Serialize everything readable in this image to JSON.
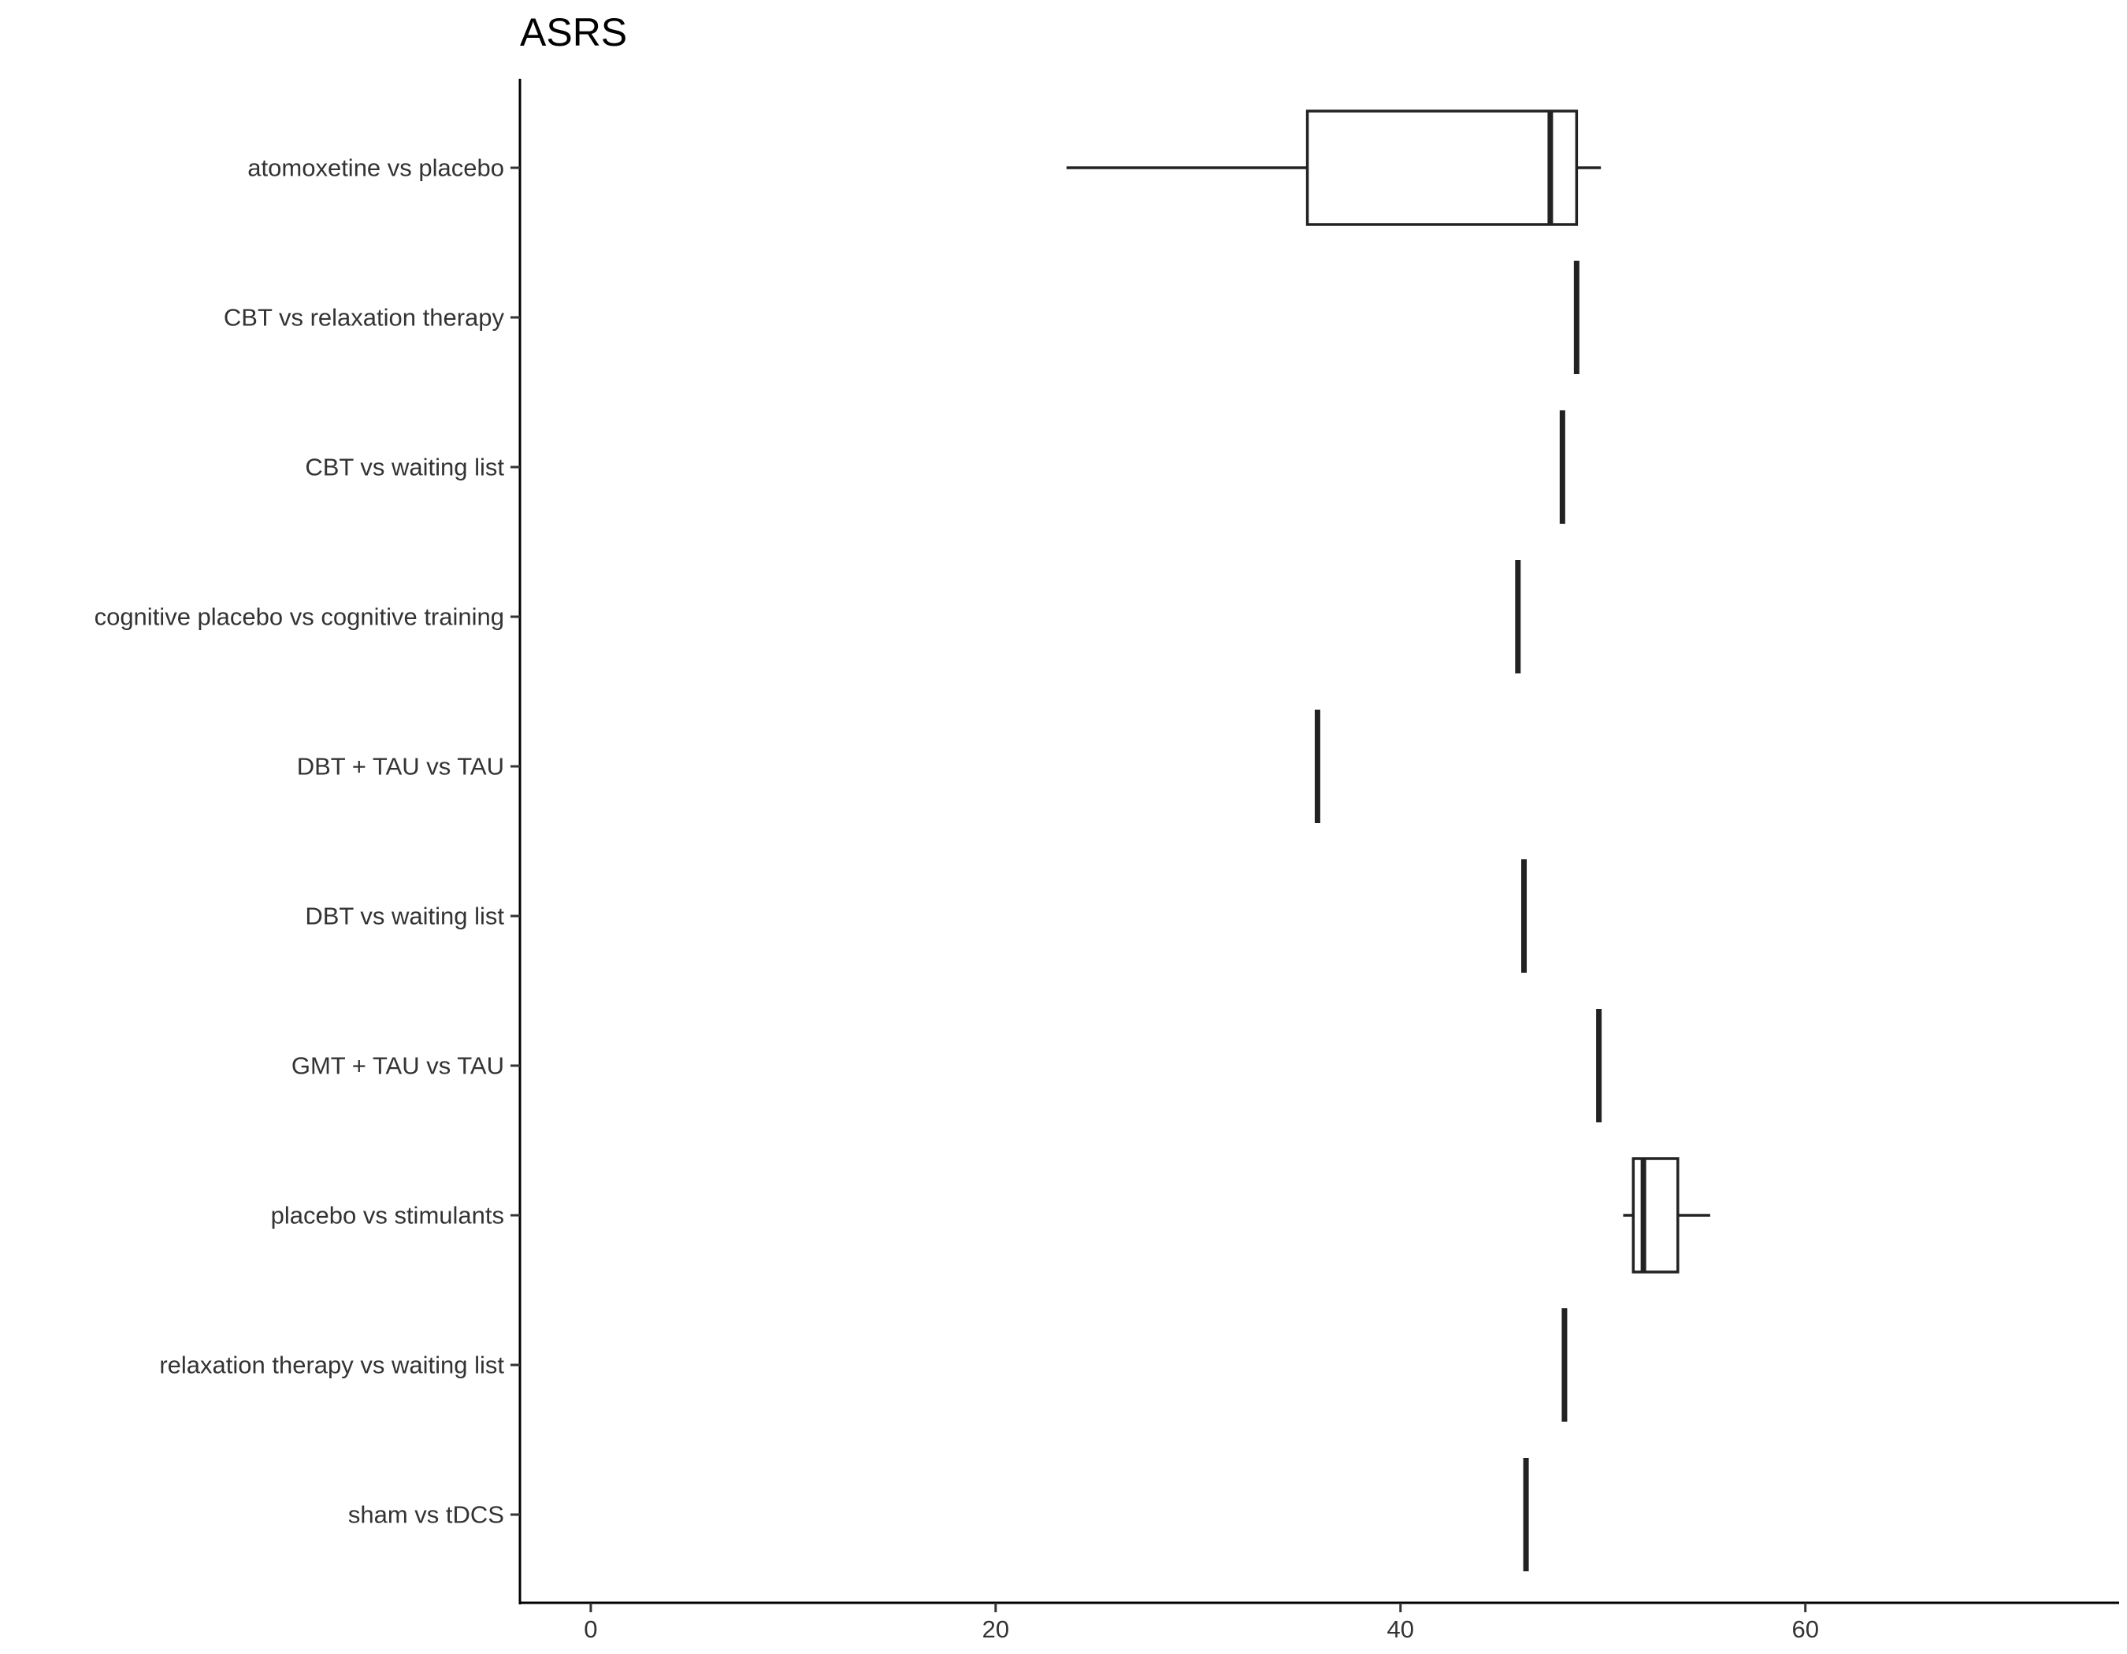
{
  "chart_data": {
    "type": "boxplot",
    "orientation": "horizontal",
    "title": "ASRS",
    "xlabel": "",
    "ylabel": "",
    "xlim": [
      -3.5,
      75.5
    ],
    "xticks": [
      0,
      20,
      40,
      60
    ],
    "grid": false,
    "legend": "none",
    "categories": [
      "atomoxetine vs placebo",
      "CBT vs relaxation therapy",
      "CBT vs waiting list",
      "cognitive placebo vs cognitive training",
      "DBT + TAU vs TAU",
      "DBT vs waiting list",
      "GMT + TAU vs TAU",
      "placebo vs stimulants",
      "relaxation therapy vs waiting list",
      "sham vs tDCS"
    ],
    "boxes": [
      {
        "min": 23.5,
        "q1": 35.4,
        "median": 47.4,
        "q3": 48.7,
        "max": 49.9
      },
      {
        "min": 48.7,
        "q1": 48.7,
        "median": 48.7,
        "q3": 48.7,
        "max": 48.7
      },
      {
        "min": 48.0,
        "q1": 48.0,
        "median": 48.0,
        "q3": 48.0,
        "max": 48.0
      },
      {
        "min": 45.8,
        "q1": 45.8,
        "median": 45.8,
        "q3": 45.8,
        "max": 45.8
      },
      {
        "min": 35.9,
        "q1": 35.9,
        "median": 35.9,
        "q3": 35.9,
        "max": 35.9
      },
      {
        "min": 46.1,
        "q1": 46.1,
        "median": 46.1,
        "q3": 46.1,
        "max": 46.1
      },
      {
        "min": 49.8,
        "q1": 49.8,
        "median": 49.8,
        "q3": 49.8,
        "max": 49.8
      },
      {
        "min": 51.0,
        "q1": 51.5,
        "median": 52.0,
        "q3": 53.7,
        "max": 55.3
      },
      {
        "min": 48.1,
        "q1": 48.1,
        "median": 48.1,
        "q3": 48.1,
        "max": 48.1
      },
      {
        "min": 46.2,
        "q1": 46.2,
        "median": 46.2,
        "q3": 46.2,
        "max": 46.2
      }
    ],
    "colors": {
      "box_stroke": "#222222",
      "box_fill": "#ffffff",
      "axis": "#000000",
      "tick_text": "#333333",
      "title": "#000000"
    }
  }
}
